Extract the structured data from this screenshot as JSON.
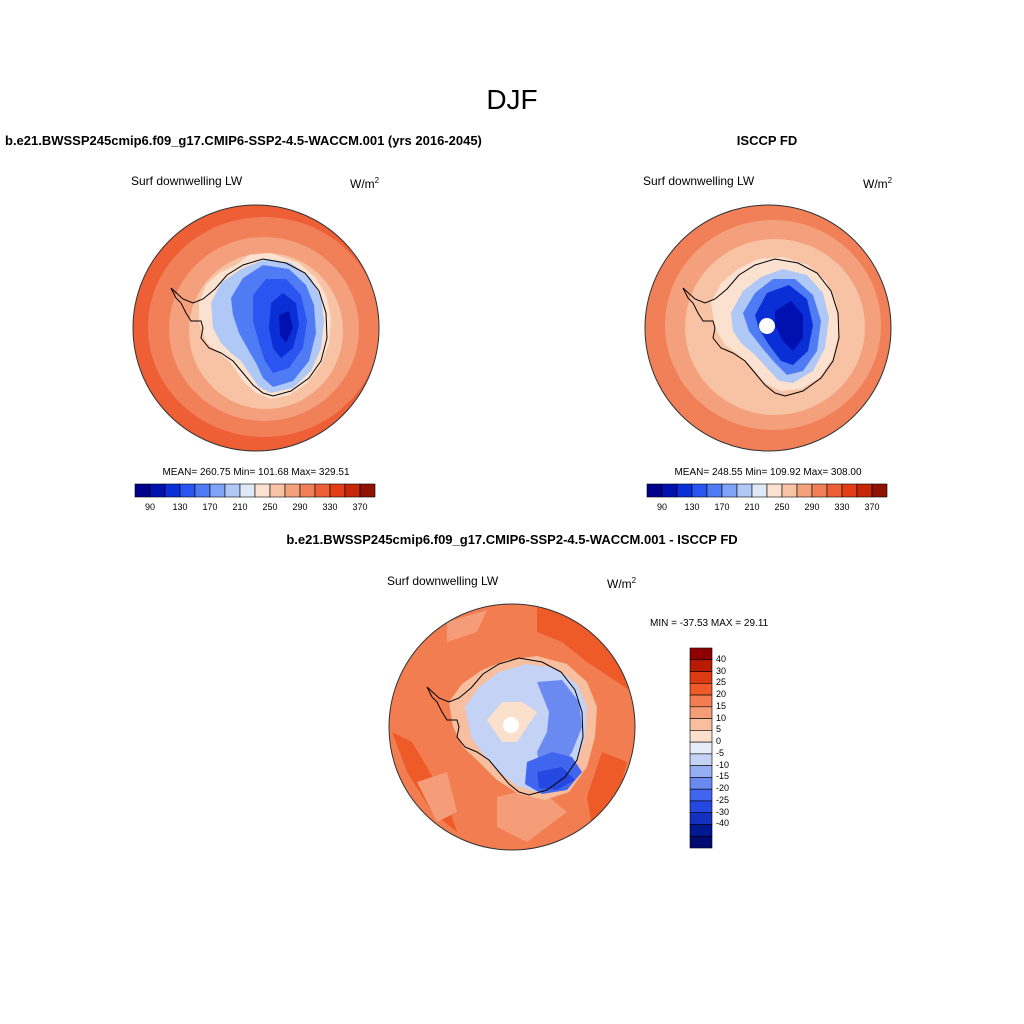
{
  "main_title": "DJF",
  "panels": [
    {
      "id": "model",
      "run_title": "b.e21.BWSSP245cmip6.f09_g17.CMIP6-SSP2-4.5-WACCM.001 (yrs 2016-2045)",
      "variable": "Surf downwelling LW",
      "units": "W/m",
      "units_sup": "2",
      "stats": "MEAN= 260.75  Min= 101.68  Max= 329.51"
    },
    {
      "id": "obs",
      "run_title": "ISCCP FD",
      "variable": "Surf downwelling LW",
      "units": "W/m",
      "units_sup": "2",
      "stats": "MEAN= 248.55  Min= 109.92  Max= 308.00"
    },
    {
      "id": "diff",
      "run_title": "b.e21.BWSSP245cmip6.f09_g17.CMIP6-SSP2-4.5-WACCM.001 - ISCCP FD",
      "variable": "Surf downwelling LW",
      "units": "W/m",
      "units_sup": "2",
      "stats": "MIN = -37.53 MAX =  29.11"
    }
  ],
  "colorbar_abs": {
    "colors": [
      "#00008b",
      "#0011b0",
      "#0a2fd6",
      "#2a55f0",
      "#4f7cf5",
      "#7ea3f7",
      "#b0c8f5",
      "#dfe8f5",
      "#fbe2d0",
      "#f8c3a5",
      "#f4a07c",
      "#f17f58",
      "#ed5f36",
      "#e23d16",
      "#c42808",
      "#8f1202"
    ],
    "labels": [
      "90",
      "130",
      "170",
      "210",
      "250",
      "290",
      "330",
      "370"
    ]
  },
  "colorbar_diff": {
    "colors": [
      "#8f0000",
      "#b81a02",
      "#dc3a10",
      "#ef5b28",
      "#f27d50",
      "#f59c78",
      "#f7bfa0",
      "#fbe0cc",
      "#e6ecf8",
      "#c3d2f5",
      "#95adf3",
      "#6a8af2",
      "#4066ef",
      "#2548e0",
      "#1530c0",
      "#001890",
      "#000a70"
    ],
    "labels": [
      "40",
      "30",
      "25",
      "20",
      "15",
      "10",
      "5",
      "0",
      "-5",
      "-10",
      "-15",
      "-20",
      "-25",
      "-30",
      "-40"
    ]
  },
  "chart_data": [
    {
      "type": "heatmap",
      "title": "b.e21.BWSSP245cmip6.f09_g17.CMIP6-SSP2-4.5-WACCM.001 (yrs 2016-2045)",
      "subtitle": "Surf downwelling LW",
      "units": "W/m2",
      "projection": "south polar stereographic",
      "season": "DJF",
      "mean": 260.75,
      "min": 101.68,
      "max": 329.51,
      "color_levels": [
        90,
        110,
        130,
        150,
        170,
        190,
        210,
        230,
        250,
        270,
        290,
        310,
        330,
        350,
        370
      ]
    },
    {
      "type": "heatmap",
      "title": "ISCCP FD",
      "subtitle": "Surf downwelling LW",
      "units": "W/m2",
      "projection": "south polar stereographic",
      "season": "DJF",
      "mean": 248.55,
      "min": 109.92,
      "max": 308.0,
      "color_levels": [
        90,
        110,
        130,
        150,
        170,
        190,
        210,
        230,
        250,
        270,
        290,
        310,
        330,
        350,
        370
      ]
    },
    {
      "type": "heatmap",
      "title": "b.e21.BWSSP245cmip6.f09_g17.CMIP6-SSP2-4.5-WACCM.001 - ISCCP FD",
      "subtitle": "Surf downwelling LW",
      "units": "W/m2",
      "projection": "south polar stereographic",
      "season": "DJF",
      "min": -37.53,
      "max": 29.11,
      "color_levels": [
        -40,
        -30,
        -25,
        -20,
        -15,
        -10,
        -5,
        0,
        5,
        10,
        15,
        20,
        25,
        30,
        40
      ]
    }
  ]
}
